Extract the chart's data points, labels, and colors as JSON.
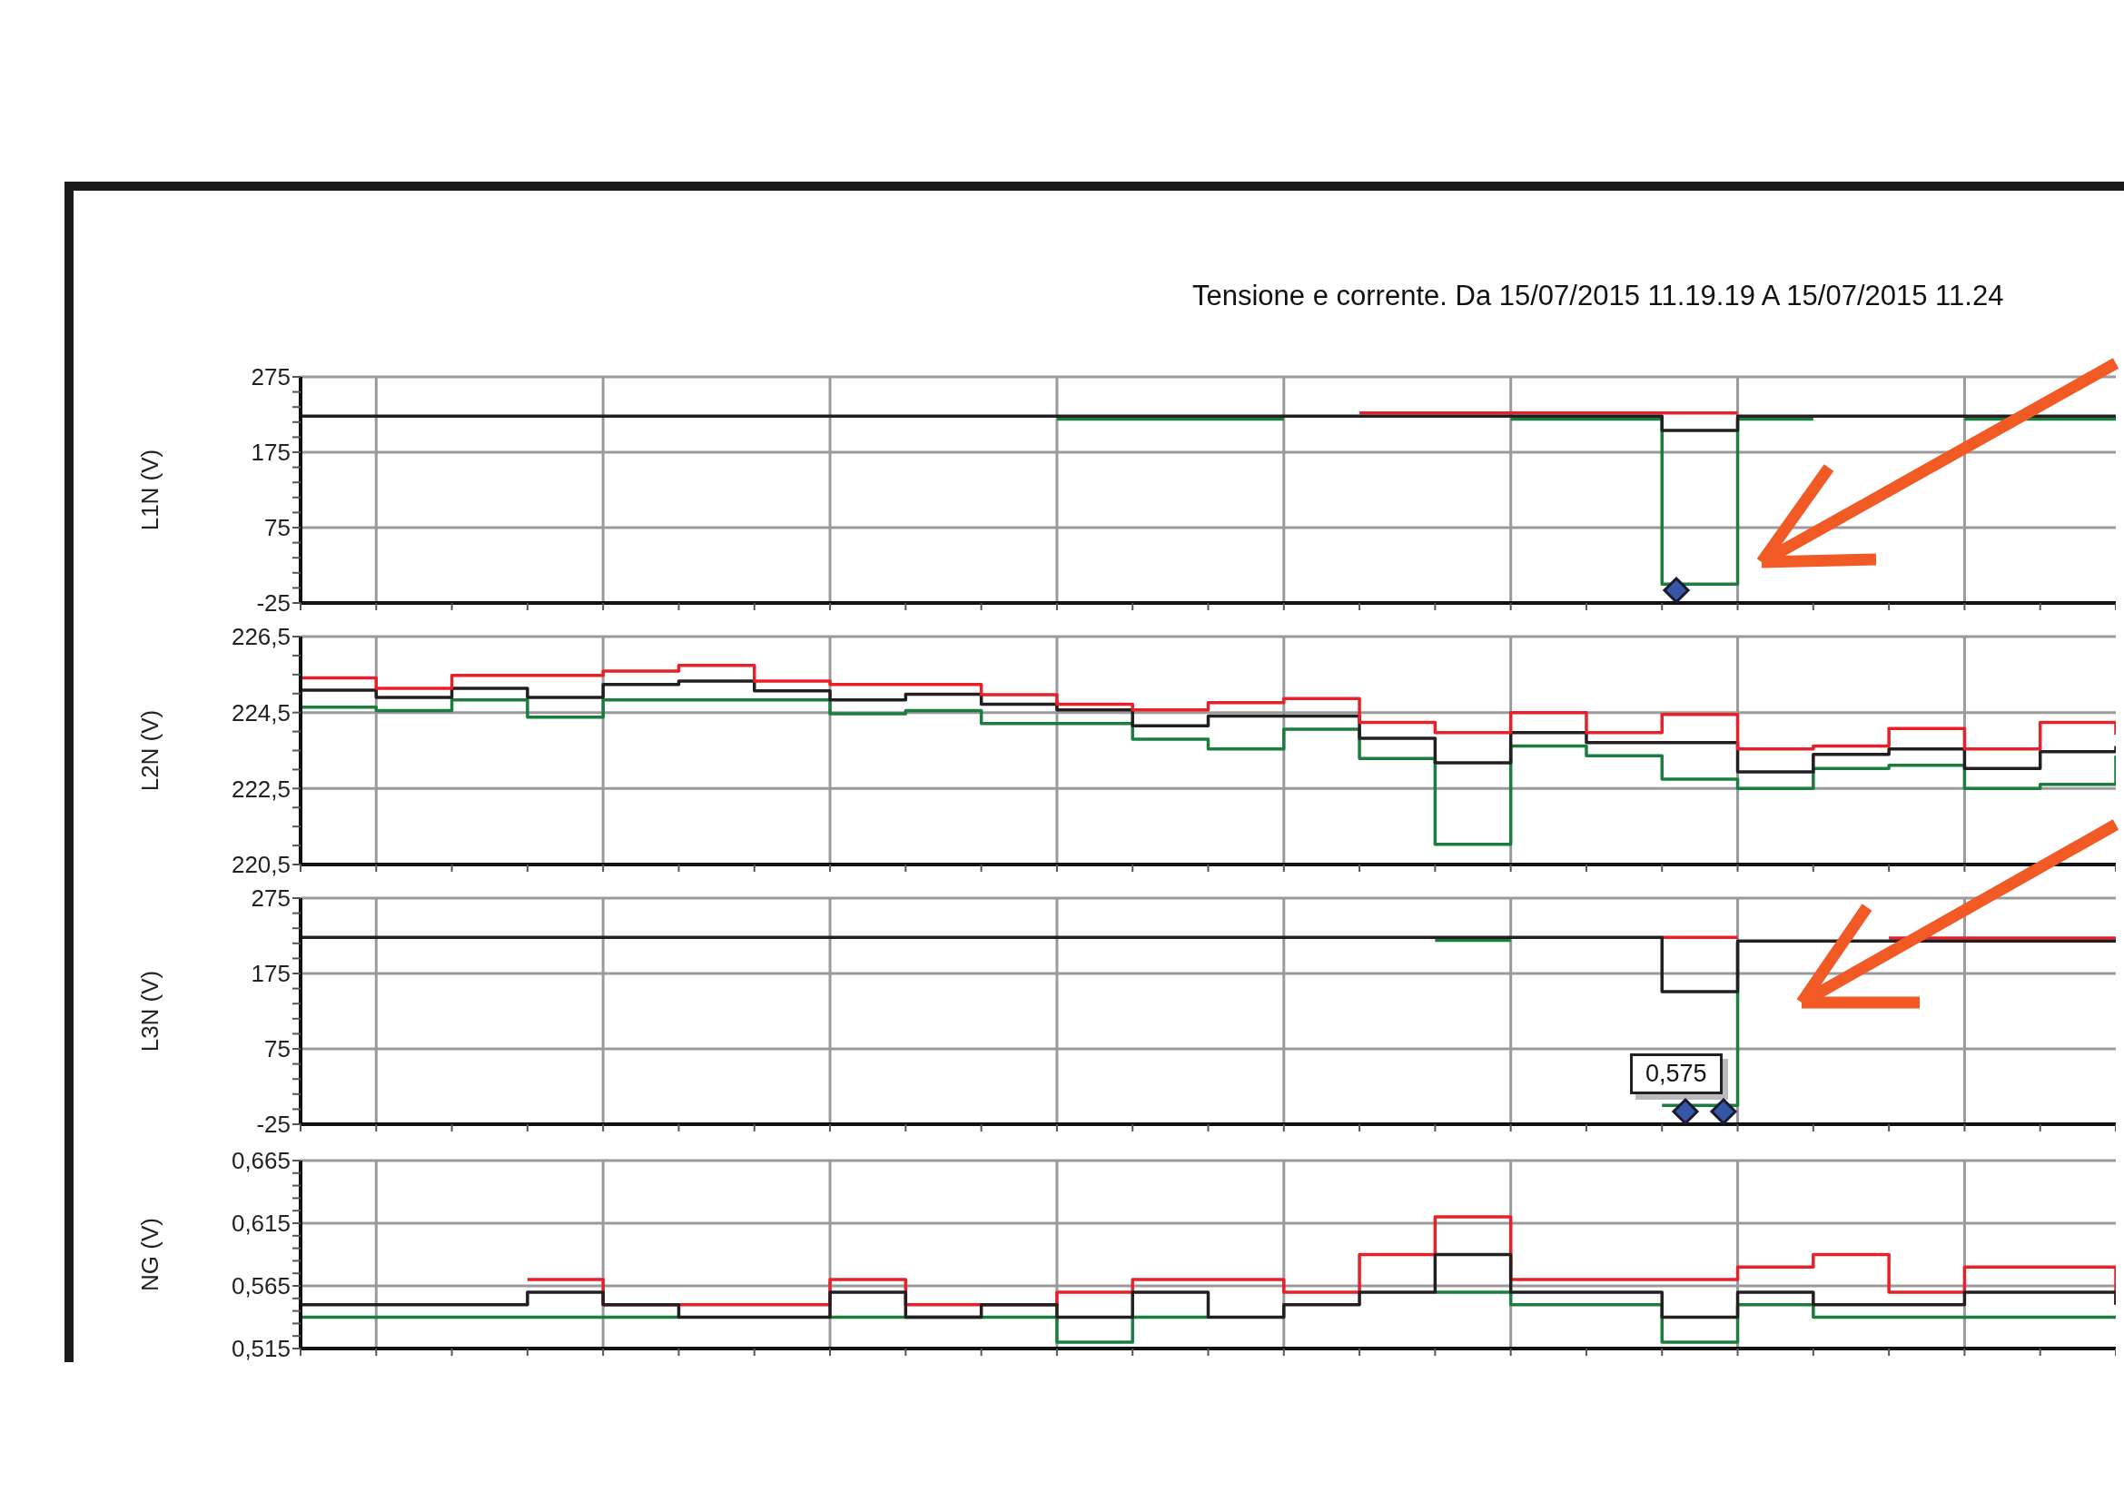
{
  "chart_data": [
    {
      "type": "step",
      "title": "Tensione e corrente. Da 15/07/2015 11.19.19 A 15/07/2015 11.24",
      "ylabel": "L1N (V)",
      "categories": [
        null,
        null,
        null,
        null,
        null,
        null,
        null,
        null,
        null,
        null,
        null,
        null,
        null,
        null,
        null,
        null,
        null,
        null,
        null,
        null,
        null,
        null,
        null,
        null,
        null
      ],
      "series": [
        {
          "color": "#e8202a",
          "values": [
            null,
            null,
            null,
            null,
            null,
            null,
            null,
            null,
            null,
            null,
            null,
            null,
            null,
            null,
            227,
            227,
            227,
            227,
            227,
            227,
            null,
            null,
            null,
            null,
            null
          ]
        },
        {
          "color": "#1b7d3e",
          "values": [
            null,
            null,
            null,
            null,
            null,
            null,
            null,
            null,
            null,
            null,
            219,
            219,
            219,
            219,
            null,
            null,
            219,
            219,
            0,
            219,
            219,
            null,
            219,
            219,
            219
          ]
        },
        {
          "color": "#231f20",
          "values": [
            223,
            223,
            223,
            223,
            223,
            223,
            223,
            223,
            223,
            223,
            223,
            223,
            223,
            223,
            223,
            223,
            223,
            223,
            204,
            223,
            223,
            223,
            223,
            223,
            223
          ]
        }
      ],
      "ylim": [
        -25,
        275
      ],
      "yticks": [
        -25,
        {
          "value": -5,
          "label": null
        },
        {
          "value": 15,
          "label": null
        },
        {
          "value": 35,
          "label": null
        },
        {
          "value": 55,
          "label": null
        },
        75,
        {
          "value": 95,
          "label": null
        },
        {
          "value": 115,
          "label": null
        },
        {
          "value": 135,
          "label": null
        },
        {
          "value": 155,
          "label": null
        },
        175,
        {
          "value": 195,
          "label": null
        },
        {
          "value": 215,
          "label": null
        },
        {
          "value": 235,
          "label": null
        },
        {
          "value": 255,
          "label": null
        },
        275
      ],
      "grid": true,
      "tick_labels": "y"
    },
    {
      "type": "step",
      "ylabel": "L2N (V)",
      "categories": [
        null,
        null,
        null,
        null,
        null,
        null,
        null,
        null,
        null,
        null,
        null,
        null,
        null,
        null,
        null,
        null,
        null,
        null,
        null,
        null,
        null,
        null,
        null,
        null,
        null
      ],
      "series": [
        {
          "color": "#1b7d3e",
          "values": [
            224.64,
            224.55,
            224.83,
            224.38,
            224.83,
            224.83,
            224.83,
            224.47,
            224.55,
            224.21,
            224.21,
            223.8,
            223.54,
            224.06,
            223.29,
            221.03,
            223.62,
            223.36,
            222.75,
            222.5,
            223.03,
            223.11,
            222.5,
            222.61,
            223.36
          ]
        },
        {
          "color": "#231f20",
          "values": [
            225.09,
            224.9,
            225.14,
            224.9,
            225.24,
            225.33,
            225.07,
            224.83,
            224.98,
            224.72,
            224.57,
            224.15,
            224.41,
            224.41,
            223.82,
            223.18,
            223.97,
            223.71,
            223.71,
            222.94,
            223.4,
            223.54,
            223.03,
            223.47,
            223.62
          ]
        },
        {
          "color": "#e8202a",
          "values": [
            225.41,
            225.14,
            225.48,
            225.48,
            225.59,
            225.74,
            225.33,
            225.24,
            225.24,
            224.97,
            224.72,
            224.57,
            224.76,
            224.87,
            224.24,
            223.97,
            224.5,
            223.97,
            224.45,
            223.54,
            223.62,
            224.08,
            223.54,
            224.24,
            223.92
          ]
        }
      ],
      "ylim": [
        220.5,
        226.5
      ],
      "yticks": [
        {
          "value": 220.5,
          "label": "220,5"
        },
        {
          "value": 221,
          "label": null
        },
        {
          "value": 221.5,
          "label": null
        },
        {
          "value": 222,
          "label": null
        },
        {
          "value": 222.5,
          "label": "222,5"
        },
        {
          "value": 223,
          "label": null
        },
        {
          "value": 223.5,
          "label": null
        },
        {
          "value": 224,
          "label": null
        },
        {
          "value": 224.5,
          "label": "224,5"
        },
        {
          "value": 225,
          "label": null
        },
        {
          "value": 225.5,
          "label": null
        },
        {
          "value": 226,
          "label": null
        },
        {
          "value": 226.5,
          "label": "226,5"
        }
      ],
      "grid": true,
      "tick_labels": "y"
    },
    {
      "type": "step",
      "ylabel": "L3N (V)",
      "annotations": [
        "0,575"
      ],
      "categories": [
        null,
        null,
        null,
        null,
        null,
        null,
        null,
        null,
        null,
        null,
        null,
        null,
        null,
        null,
        null,
        null,
        null,
        null,
        null,
        null,
        null,
        null,
        null,
        null,
        null
      ],
      "series": [
        {
          "color": "#e8202a",
          "values": [
            null,
            null,
            null,
            null,
            null,
            null,
            null,
            null,
            null,
            null,
            null,
            null,
            null,
            null,
            null,
            null,
            null,
            null,
            223,
            223,
            null,
            222,
            222,
            222,
            222
          ]
        },
        {
          "color": "#1b7d3e",
          "values": [
            null,
            null,
            null,
            null,
            null,
            null,
            null,
            null,
            null,
            null,
            null,
            null,
            null,
            null,
            null,
            219,
            219,
            null,
            0,
            216,
            null,
            null,
            null,
            null,
            null
          ]
        },
        {
          "color": "#231f20",
          "values": [
            223,
            223,
            223,
            223,
            223,
            223,
            223,
            223,
            223,
            223,
            223,
            223,
            223,
            223,
            223,
            223,
            223,
            223,
            151,
            218,
            218,
            218,
            218,
            218,
            218
          ]
        }
      ],
      "ylim": [
        -25,
        275
      ],
      "yticks": [
        -25,
        {
          "value": -5,
          "label": null
        },
        {
          "value": 15,
          "label": null
        },
        {
          "value": 35,
          "label": null
        },
        {
          "value": 55,
          "label": null
        },
        75,
        {
          "value": 95,
          "label": null
        },
        {
          "value": 115,
          "label": null
        },
        {
          "value": 135,
          "label": null
        },
        {
          "value": 155,
          "label": null
        },
        175,
        {
          "value": 195,
          "label": null
        },
        {
          "value": 215,
          "label": null
        },
        {
          "value": 235,
          "label": null
        },
        {
          "value": 255,
          "label": null
        },
        275
      ],
      "grid": true,
      "tick_labels": "y"
    },
    {
      "type": "step",
      "ylabel": "NG (V)",
      "categories": [
        null,
        null,
        null,
        null,
        null,
        null,
        null,
        null,
        null,
        null,
        null,
        null,
        null,
        null,
        null,
        null,
        null,
        null,
        null,
        null,
        null,
        null,
        null,
        null,
        null
      ],
      "series": [
        {
          "color": "#e8202a",
          "values": [
            null,
            null,
            null,
            0.57,
            0.55,
            0.55,
            0.55,
            0.57,
            0.55,
            0.55,
            0.56,
            0.57,
            0.57,
            0.56,
            0.59,
            0.62,
            0.57,
            0.57,
            0.57,
            0.58,
            0.59,
            0.56,
            0.58,
            0.58,
            0.55
          ]
        },
        {
          "color": "#1b7d3e",
          "values": [
            0.54,
            0.54,
            0.54,
            0.54,
            0.54,
            0.54,
            null,
            0.54,
            0.54,
            0.54,
            0.52,
            0.54,
            0.54,
            null,
            null,
            0.56,
            0.55,
            0.55,
            0.52,
            0.55,
            0.54,
            0.54,
            0.54,
            0.54,
            0.54
          ]
        },
        {
          "color": "#231f20",
          "values": [
            0.55,
            0.55,
            0.55,
            0.56,
            0.55,
            0.54,
            0.54,
            0.56,
            0.54,
            0.55,
            0.54,
            0.56,
            0.54,
            0.55,
            0.56,
            0.59,
            0.56,
            0.56,
            0.54,
            0.56,
            0.55,
            0.55,
            0.56,
            0.56,
            0.55
          ]
        }
      ],
      "ylim": [
        0.515,
        0.665
      ],
      "yticks": [
        {
          "value": 0.515,
          "label": "0,515"
        },
        {
          "value": 0.525,
          "label": null
        },
        {
          "value": 0.535,
          "label": null
        },
        {
          "value": 0.545,
          "label": null
        },
        {
          "value": 0.555,
          "label": null
        },
        {
          "value": 0.565,
          "label": "0,565"
        },
        {
          "value": 0.575,
          "label": null
        },
        {
          "value": 0.585,
          "label": null
        },
        {
          "value": 0.595,
          "label": null
        },
        {
          "value": 0.605,
          "label": null
        },
        {
          "value": 0.615,
          "label": "0,615"
        },
        {
          "value": 0.625,
          "label": null
        },
        {
          "value": 0.635,
          "label": null
        },
        {
          "value": 0.645,
          "label": null
        },
        {
          "value": 0.655,
          "label": null
        },
        {
          "value": 0.665,
          "label": "0,665"
        }
      ],
      "grid": true,
      "tick_labels": "y"
    }
  ]
}
